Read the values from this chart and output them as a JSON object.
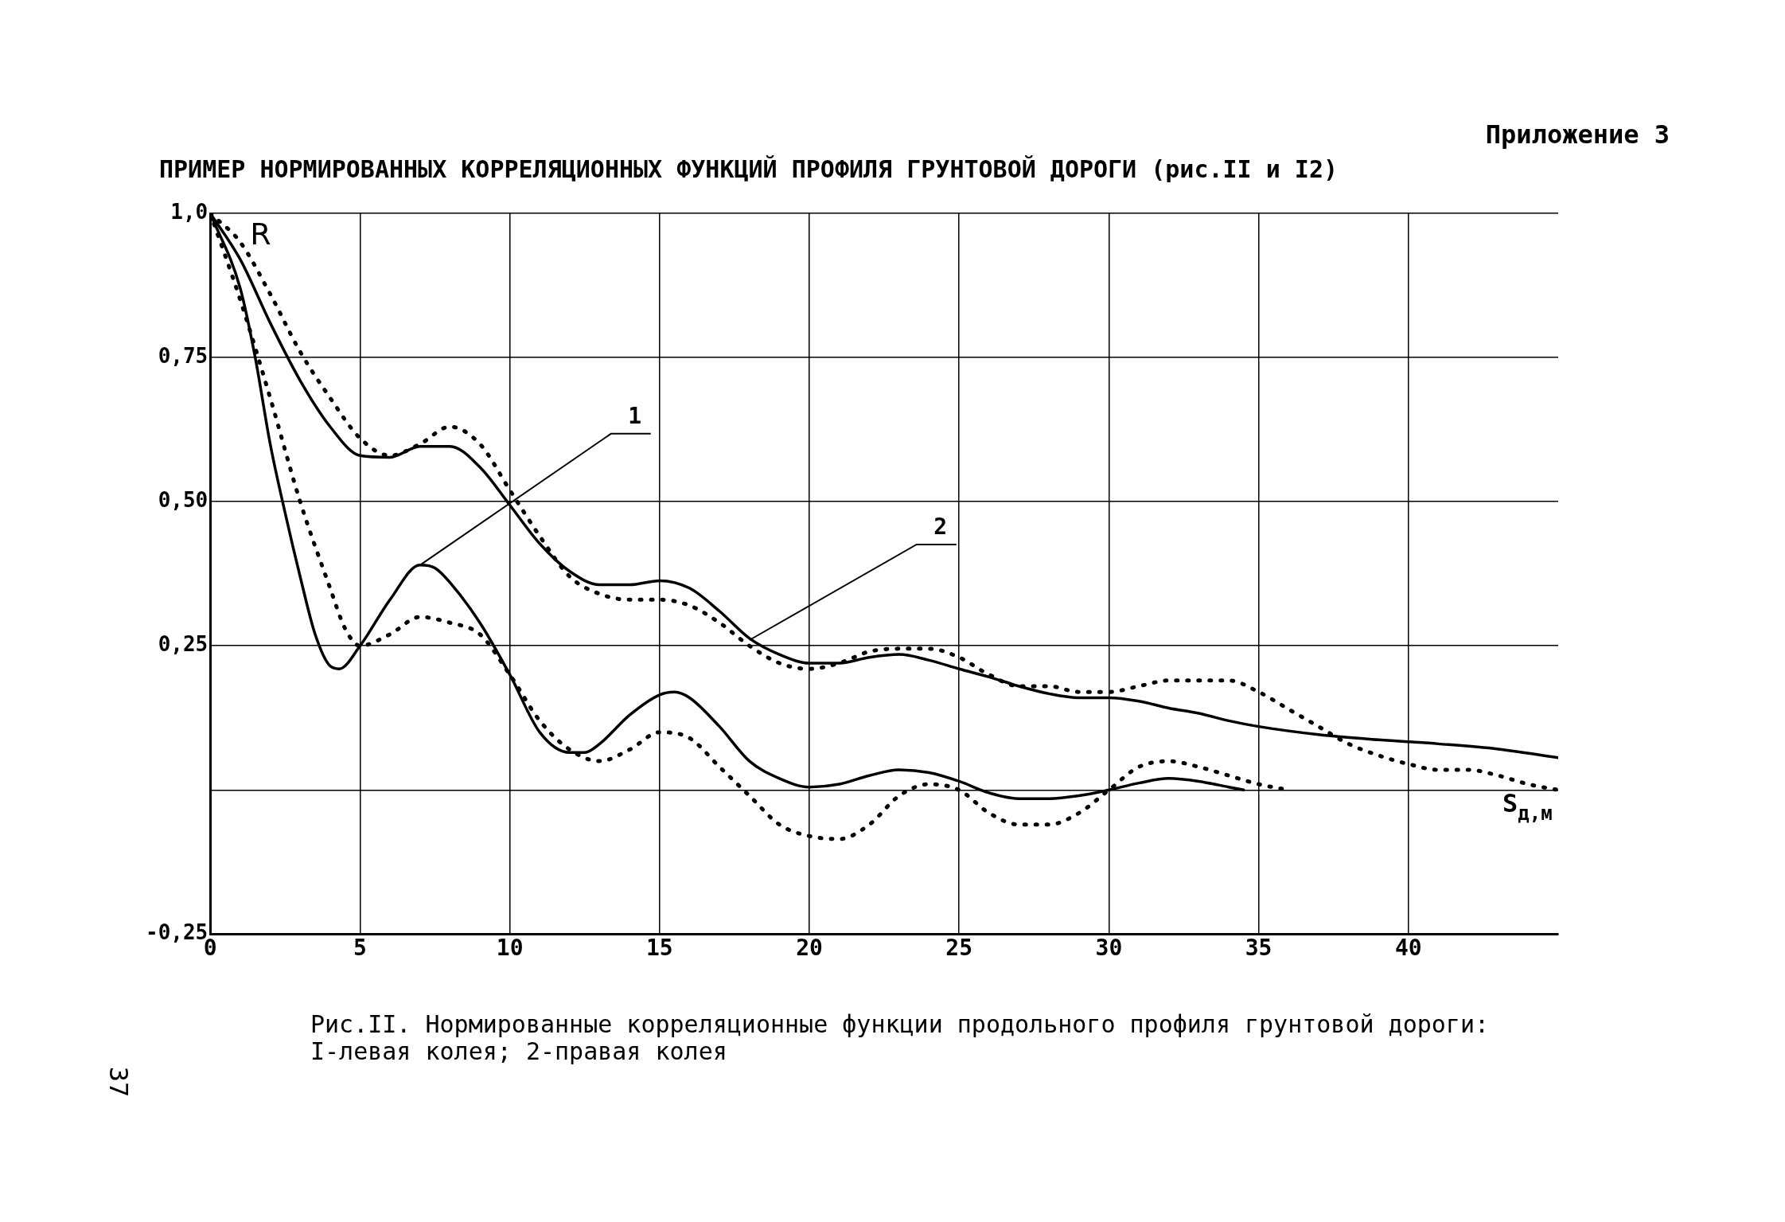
{
  "chart_data": {
    "type": "line",
    "title": "ПРИМЕР НОРМИРОВАННЫХ КОРРЕЛЯЦИОННЫХ ФУНКЦИЙ ПРОФИЛЯ ГРУНТОВОЙ ДОРОГИ (рис.II и I2)",
    "xlabel": "S$_{д,м}$",
    "ylabel": "R",
    "xlim": [
      0,
      45
    ],
    "xticks": [
      0,
      5,
      10,
      15,
      20,
      25,
      30,
      35,
      40
    ],
    "ylim": [
      -0.25,
      1.0
    ],
    "yticks": [
      {
        "value": -0.25,
        "label": "-0,25"
      },
      {
        "value": 0,
        "label": null
      },
      {
        "value": 0.25,
        "label": "0,25"
      },
      {
        "value": 0.5,
        "label": "0,50"
      },
      {
        "value": 0.75,
        "label": "0,75"
      },
      {
        "value": 1.0,
        "label": "1,0"
      }
    ],
    "grid": true,
    "legend": false,
    "marker": "none",
    "annotations": [
      "Приложение 3",
      {
        "text": "1",
        "x": 7,
        "y": 0.39
      },
      {
        "text": "2",
        "x": 18,
        "y": 0.26
      },
      "Рис.II. Нормированные корреляционные функции продольного профиля грунтовой дороги:",
      "I-левая колея; 2-правая колея",
      "37"
    ],
    "series": [
      {
        "color": "#000000",
        "line_style": "solid",
        "x": [
          0,
          1,
          2,
          3,
          4,
          5,
          6,
          7,
          8,
          9,
          10,
          11,
          12,
          13,
          14,
          15,
          16,
          17,
          18,
          19,
          20,
          21,
          22,
          23,
          24,
          25,
          26,
          27,
          28,
          29,
          30,
          31,
          32,
          33,
          34,
          35,
          37,
          39,
          41,
          43,
          45
        ],
        "values": [
          1.0,
          0.92,
          0.81,
          0.71,
          0.63,
          0.58,
          0.577,
          0.596,
          0.596,
          0.56,
          0.494,
          0.427,
          0.379,
          0.356,
          0.356,
          0.363,
          0.35,
          0.31,
          0.263,
          0.235,
          0.22,
          0.22,
          0.23,
          0.235,
          0.225,
          0.21,
          0.196,
          0.18,
          0.167,
          0.16,
          0.16,
          0.154,
          0.142,
          0.133,
          0.12,
          0.11,
          0.096,
          0.087,
          0.08,
          0.071,
          0.056
        ]
      },
      {
        "color": "#000000",
        "line_style": "solid",
        "x": [
          0,
          1,
          1.5,
          2,
          2.5,
          3,
          3.5,
          4,
          4.3,
          5,
          6,
          7,
          7.5,
          8,
          9,
          10,
          11,
          12,
          12.5,
          13,
          14,
          15,
          15.5,
          16,
          17,
          18,
          19,
          20,
          21,
          22,
          23,
          24,
          25,
          26,
          27,
          28,
          29,
          30,
          31,
          32,
          33,
          34,
          34.5
        ],
        "values": [
          1.0,
          0.87,
          0.75,
          0.6,
          0.48,
          0.37,
          0.27,
          0.215,
          0.21,
          0.25,
          0.33,
          0.39,
          0.385,
          0.36,
          0.29,
          0.2,
          0.1,
          0.065,
          0.065,
          0.08,
          0.13,
          0.165,
          0.17,
          0.16,
          0.11,
          0.05,
          0.02,
          0.005,
          0.01,
          0.025,
          0.035,
          0.03,
          0.015,
          -0.005,
          -0.015,
          -0.015,
          -0.01,
          0.0,
          0.012,
          0.02,
          0.015,
          0.005,
          0.0
        ]
      },
      {
        "color": "#000000",
        "line_style": "dotted",
        "x": [
          0,
          1,
          2,
          3,
          4,
          5,
          6,
          7,
          8,
          9,
          10,
          11,
          12,
          13,
          14,
          15,
          16,
          17,
          18,
          19,
          20,
          21,
          22,
          23,
          24,
          25,
          26,
          27,
          28,
          29,
          30,
          31,
          32,
          33,
          34,
          35,
          36,
          37,
          38,
          39,
          40,
          41,
          42,
          43,
          44,
          45
        ],
        "values": [
          1.0,
          0.95,
          0.86,
          0.76,
          0.68,
          0.61,
          0.58,
          0.6,
          0.63,
          0.6,
          0.52,
          0.44,
          0.37,
          0.34,
          0.33,
          0.33,
          0.32,
          0.29,
          0.25,
          0.22,
          0.21,
          0.22,
          0.24,
          0.245,
          0.245,
          0.23,
          0.2,
          0.18,
          0.18,
          0.17,
          0.17,
          0.18,
          0.19,
          0.19,
          0.19,
          0.17,
          0.14,
          0.11,
          0.08,
          0.06,
          0.045,
          0.035,
          0.035,
          0.025,
          0.01,
          0.0
        ]
      },
      {
        "color": "#000000",
        "line_style": "dotted",
        "x": [
          0,
          1,
          2,
          3,
          4,
          4.5,
          5,
          6,
          7,
          8,
          9,
          10,
          11,
          12,
          13,
          14,
          15,
          16,
          17,
          18,
          19,
          20,
          21,
          22,
          23,
          24,
          25,
          26,
          27,
          28,
          29,
          30,
          31,
          32,
          33,
          34,
          35,
          36
        ],
        "values": [
          1.0,
          0.85,
          0.68,
          0.5,
          0.35,
          0.28,
          0.25,
          0.27,
          0.3,
          0.29,
          0.27,
          0.2,
          0.12,
          0.07,
          0.05,
          0.07,
          0.1,
          0.09,
          0.04,
          -0.01,
          -0.06,
          -0.08,
          -0.085,
          -0.06,
          -0.01,
          0.01,
          0.0,
          -0.04,
          -0.06,
          -0.06,
          -0.04,
          0.0,
          0.04,
          0.05,
          0.04,
          0.025,
          0.01,
          0.0
        ]
      }
    ]
  }
}
